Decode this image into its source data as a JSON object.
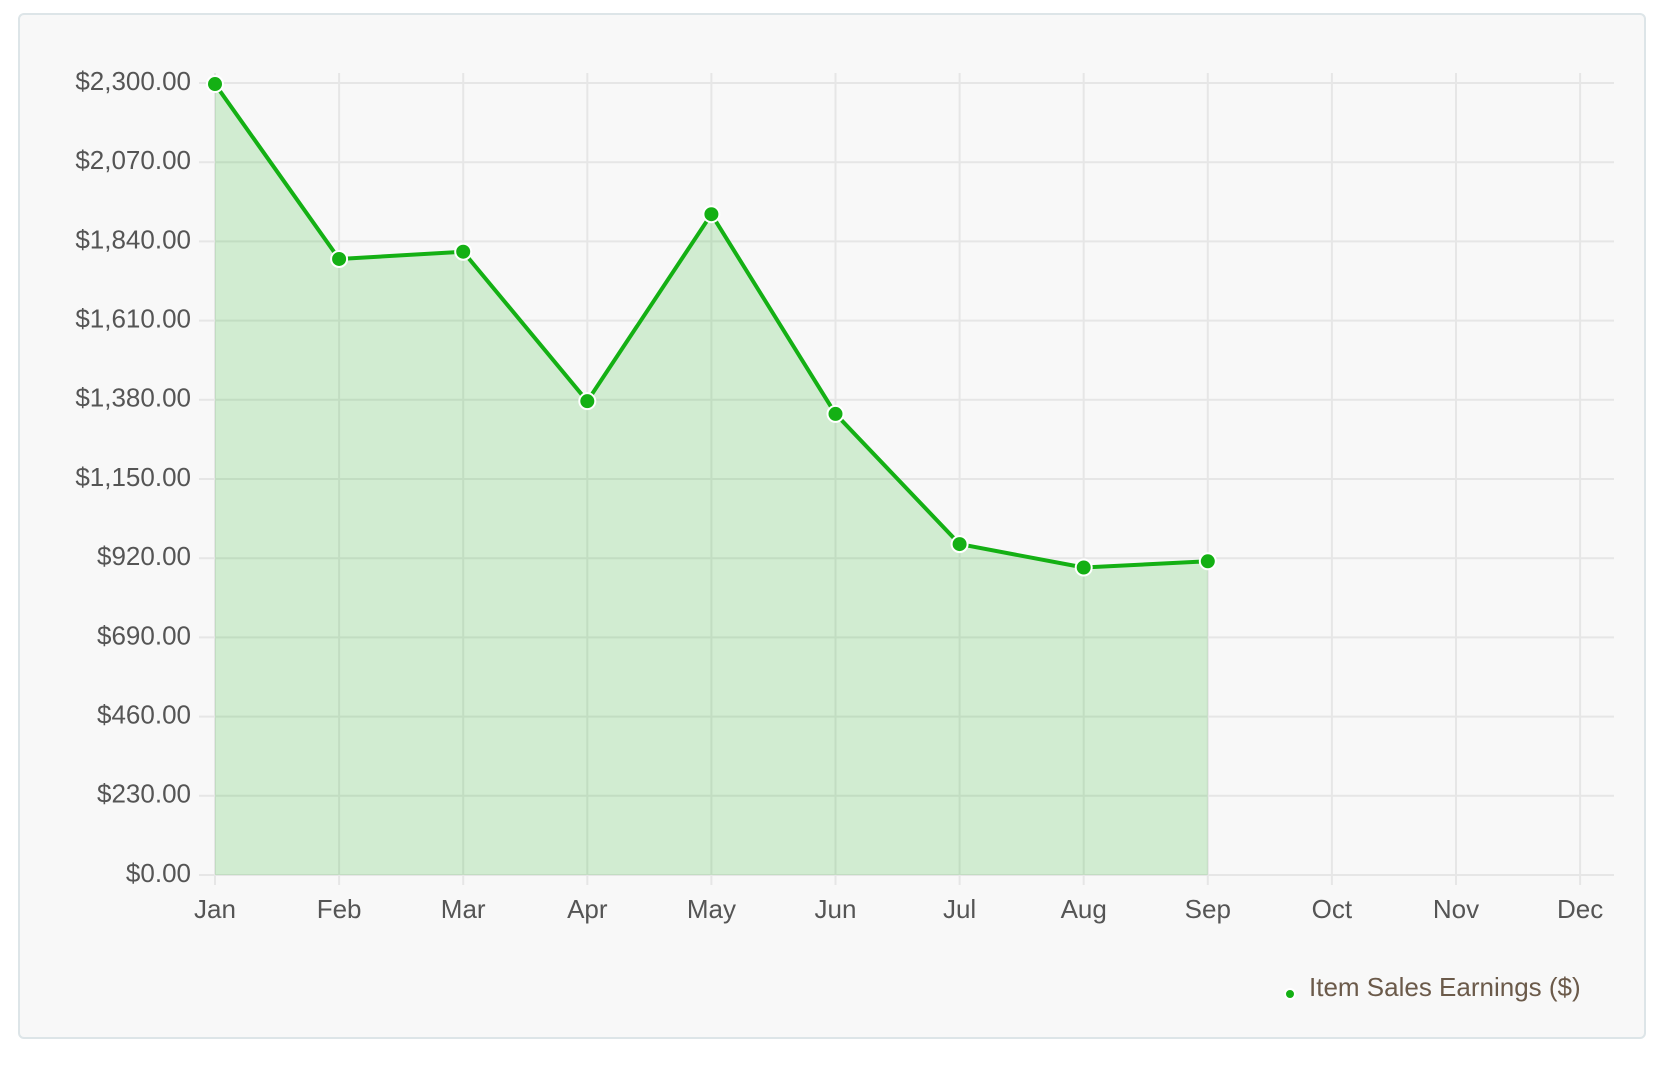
{
  "chart_data": {
    "type": "line",
    "categories": [
      "Jan",
      "Feb",
      "Mar",
      "Apr",
      "May",
      "Jun",
      "Jul",
      "Aug",
      "Sep",
      "Oct",
      "Nov",
      "Dec"
    ],
    "series": [
      {
        "name": "Item Sales Earnings ($)",
        "color": "#14b014",
        "values": [
          2297,
          1789,
          1810,
          1376,
          1919,
          1339,
          961,
          893,
          911,
          null,
          null,
          null
        ]
      }
    ],
    "ylim": [
      0,
      2300
    ],
    "yticks": [
      {
        "value": 0,
        "label": "$0.00"
      },
      {
        "value": 230,
        "label": "$230.00"
      },
      {
        "value": 460,
        "label": "$460.00"
      },
      {
        "value": 690,
        "label": "$690.00"
      },
      {
        "value": 920,
        "label": "$920.00"
      },
      {
        "value": 1150,
        "label": "$1,150.00"
      },
      {
        "value": 1380,
        "label": "$1,380.00"
      },
      {
        "value": 1610,
        "label": "$1,610.00"
      },
      {
        "value": 1840,
        "label": "$1,840.00"
      },
      {
        "value": 2070,
        "label": "$2,070.00"
      },
      {
        "value": 2300,
        "label": "$2,300.00"
      }
    ],
    "grid": true,
    "legend": "bottom-right"
  }
}
